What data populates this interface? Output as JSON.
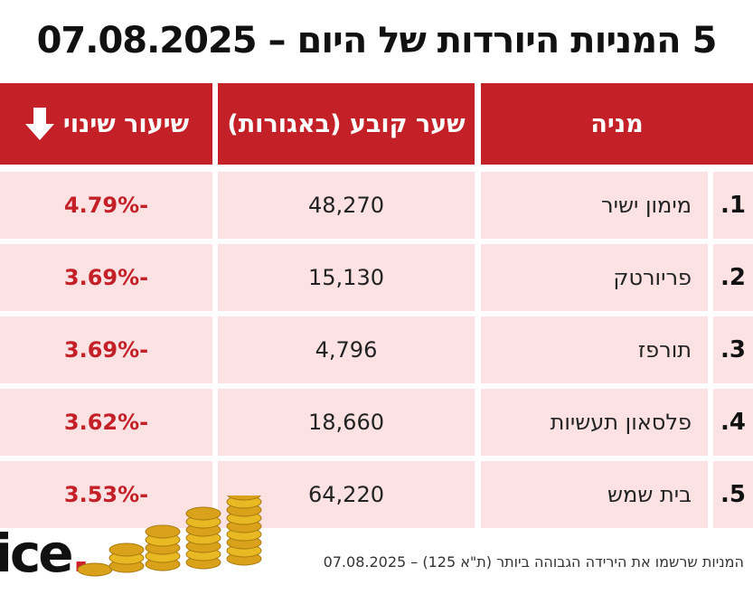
{
  "title": "5 המניות היורדות של היום – 07.08.2025",
  "headers": {
    "stock": "מניה",
    "price": "שער קובע (באגורות)",
    "change": "שיעור שינוי",
    "change_icon": "arrow-down-icon"
  },
  "rows": [
    {
      "rank": "1.",
      "name": "מימון ישיר",
      "price": "48,270",
      "change": "-4.79%"
    },
    {
      "rank": "2.",
      "name": "פריורטק",
      "price": "15,130",
      "change": "-3.69%"
    },
    {
      "rank": "3.",
      "name": "תורפז",
      "price": "4,796",
      "change": "-3.69%"
    },
    {
      "rank": "4.",
      "name": "פלסאון תעשיות",
      "price": "18,660",
      "change": "-3.62%"
    },
    {
      "rank": "5.",
      "name": "בית שמש",
      "price": "64,220",
      "change": "-3.53%"
    }
  ],
  "footer": "המניות שרשמו את הירידה הגבוהה ביותר (ת\"א 125) – 07.08.2025",
  "logo": {
    "text": "ice",
    "dot": "."
  },
  "colors": {
    "header_bg": "#c42028",
    "row_bg": "#fde2e4",
    "negative": "#c42028"
  },
  "chart_data": {
    "type": "table",
    "title": "5 המניות היורדות של היום – 07.08.2025",
    "columns": [
      "מניה",
      "שער קובע (באגורות)",
      "שיעור שינוי"
    ],
    "categories": [
      "מימון ישיר",
      "פריורטק",
      "תורפז",
      "פלסאון תעשיות",
      "בית שמש"
    ],
    "series": [
      {
        "name": "שער קובע (באגורות)",
        "values": [
          48270,
          15130,
          4796,
          18660,
          64220
        ]
      },
      {
        "name": "שיעור שינוי",
        "values": [
          -4.79,
          -3.69,
          -3.69,
          -3.62,
          -3.53
        ]
      }
    ]
  }
}
